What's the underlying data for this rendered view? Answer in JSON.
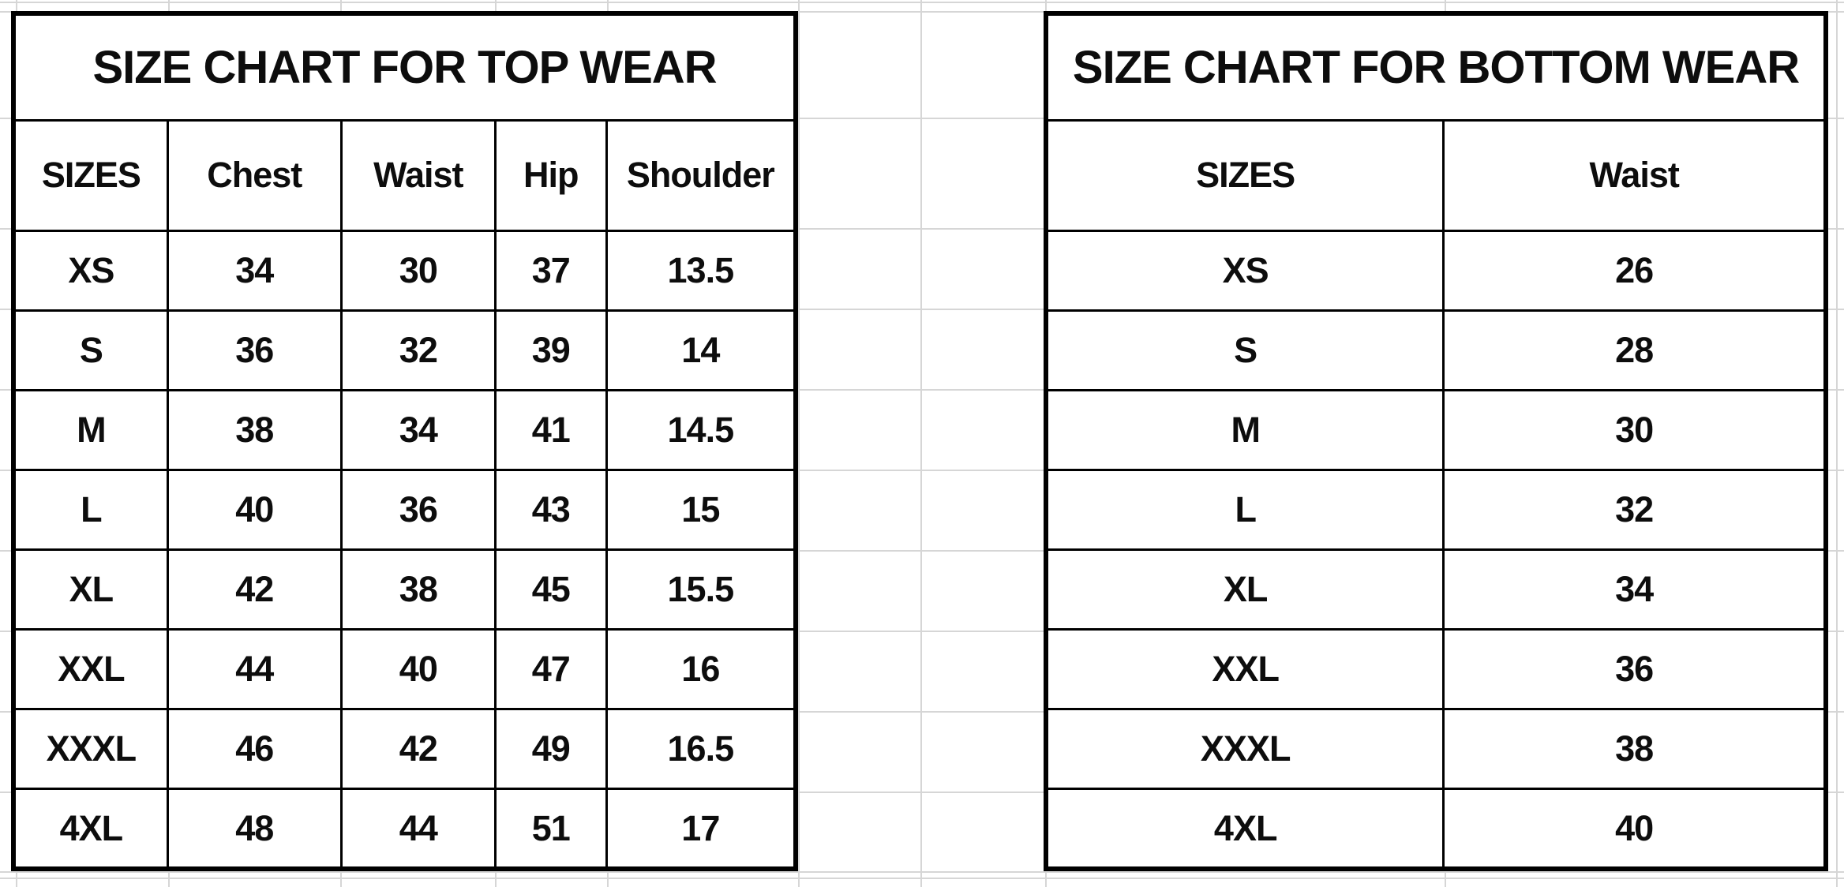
{
  "chart_data": [
    {
      "type": "table",
      "title": "SIZE CHART FOR TOP WEAR",
      "columns": [
        "SIZES",
        "Chest",
        "Waist",
        "Hip",
        "Shoulder"
      ],
      "rows": [
        [
          "XS",
          34,
          30,
          37,
          13.5
        ],
        [
          "S",
          36,
          32,
          39,
          14
        ],
        [
          "M",
          38,
          34,
          41,
          14.5
        ],
        [
          "L",
          40,
          36,
          43,
          15
        ],
        [
          "XL",
          42,
          38,
          45,
          15.5
        ],
        [
          "XXL",
          44,
          40,
          47,
          16
        ],
        [
          "XXXL",
          46,
          42,
          49,
          16.5
        ],
        [
          "4XL",
          48,
          44,
          51,
          17
        ]
      ]
    },
    {
      "type": "table",
      "title": "SIZE CHART FOR BOTTOM WEAR",
      "columns": [
        "SIZES",
        "Waist"
      ],
      "rows": [
        [
          "XS",
          26
        ],
        [
          "S",
          28
        ],
        [
          "M",
          30
        ],
        [
          "L",
          32
        ],
        [
          "XL",
          34
        ],
        [
          "XXL",
          36
        ],
        [
          "XXXL",
          38
        ],
        [
          "4XL",
          40
        ]
      ]
    }
  ],
  "colors": {
    "border": "#000000",
    "gridline": "#d6d6d6",
    "background": "#ffffff",
    "text": "#0d0d0d"
  }
}
